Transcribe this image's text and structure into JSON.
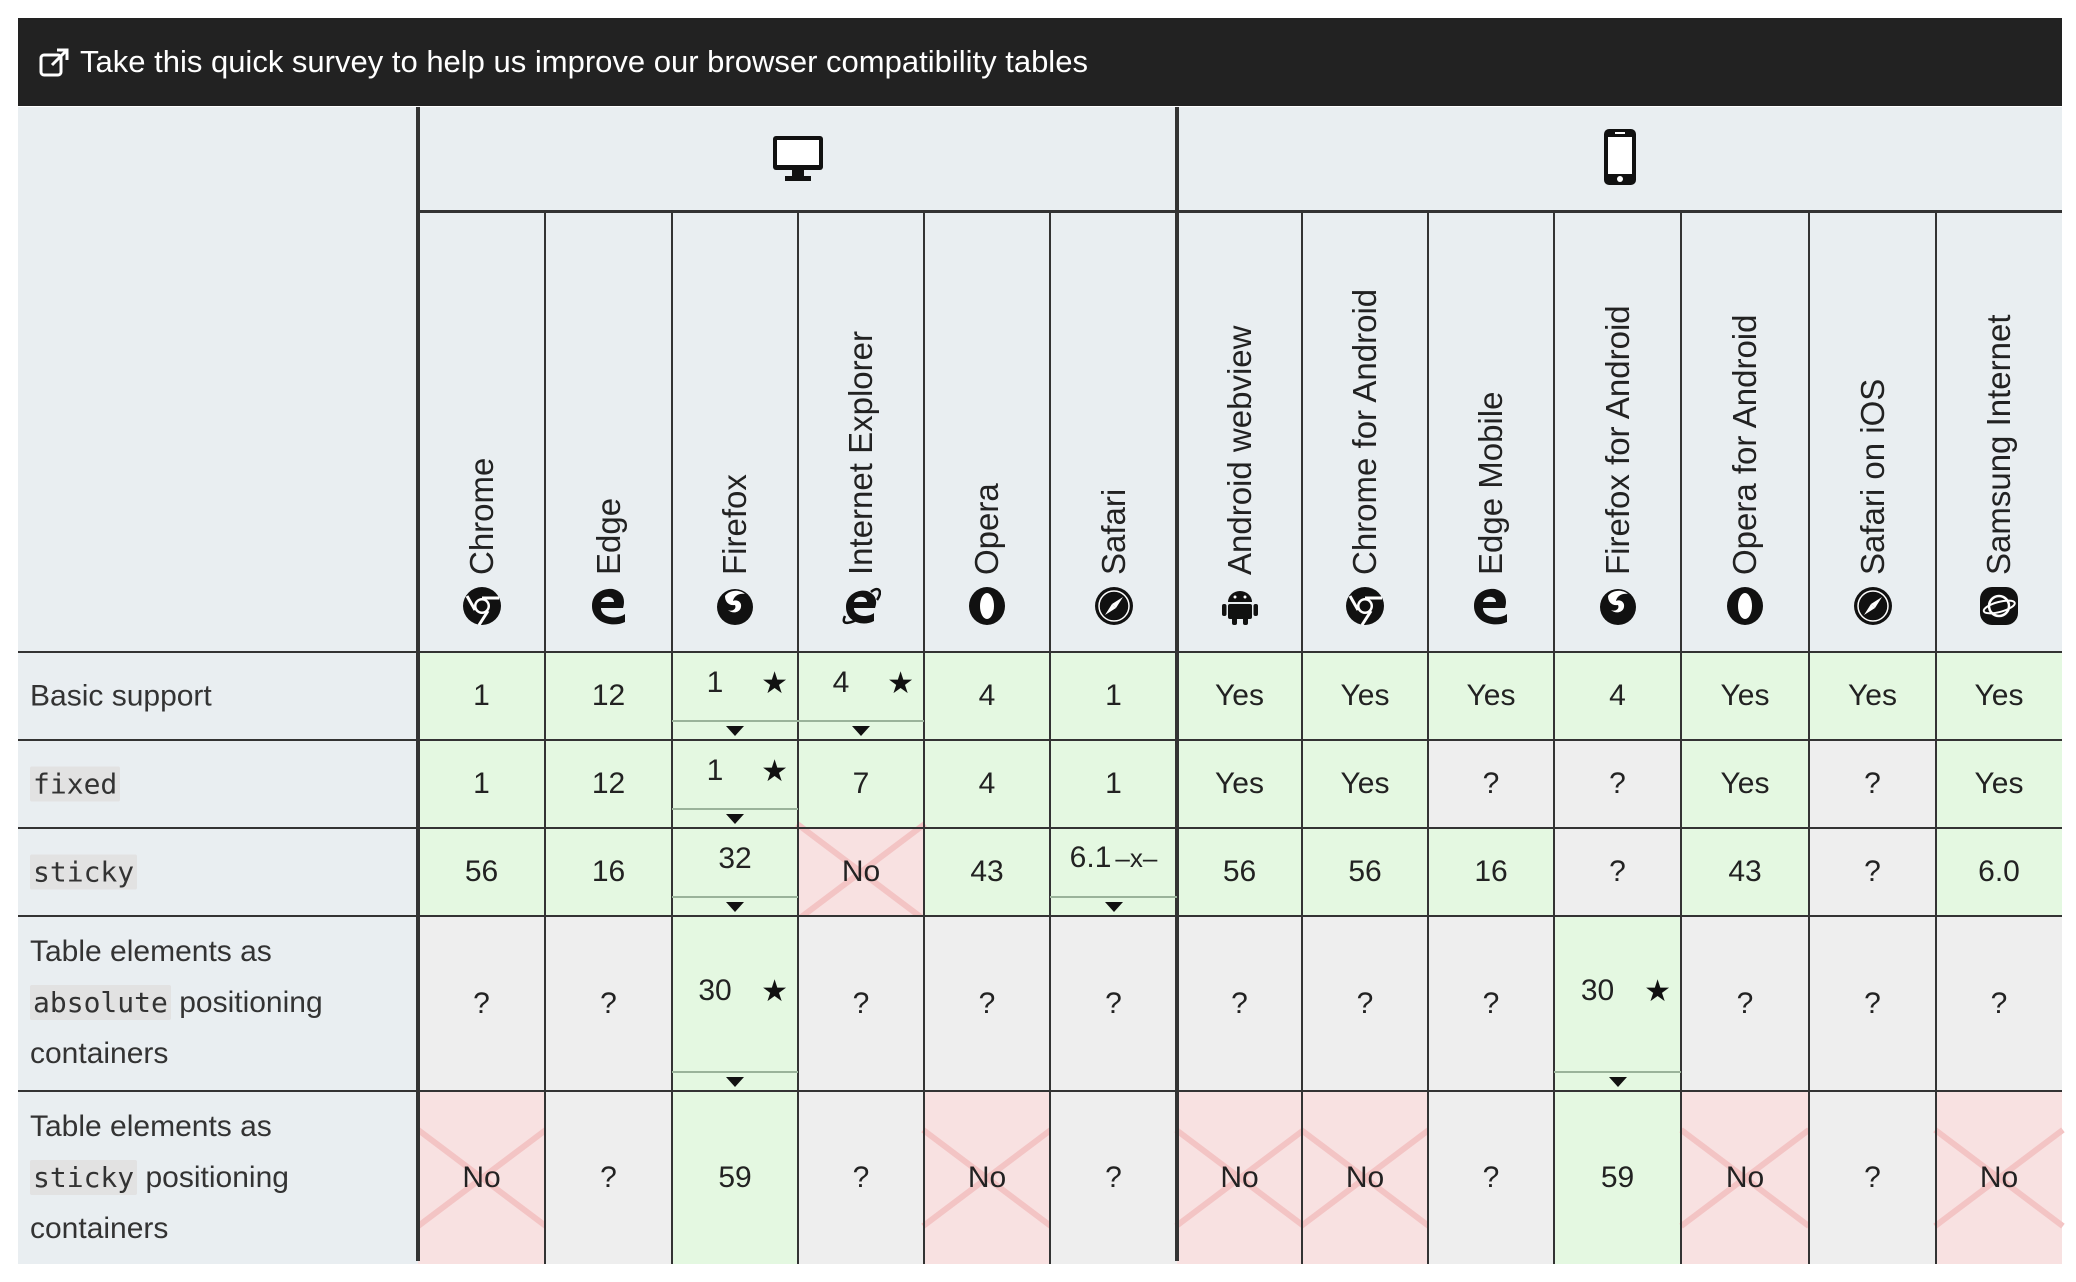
{
  "banner": {
    "icon": "external-link-icon",
    "text": "Take this quick survey to help us improve our browser compatibility tables"
  },
  "platforms": [
    {
      "name": "desktop",
      "icon": "desktop-monitor-icon"
    },
    {
      "name": "mobile",
      "icon": "mobile-phone-icon"
    }
  ],
  "browsers": [
    {
      "name": "Chrome",
      "icon": "chrome-icon"
    },
    {
      "name": "Edge",
      "icon": "edge-icon"
    },
    {
      "name": "Firefox",
      "icon": "firefox-icon"
    },
    {
      "name": "Internet Explorer",
      "icon": "internet-explorer-icon"
    },
    {
      "name": "Opera",
      "icon": "opera-icon"
    },
    {
      "name": "Safari",
      "icon": "safari-icon"
    },
    {
      "name": "Android webview",
      "icon": "android-icon"
    },
    {
      "name": "Chrome for Android",
      "icon": "chrome-icon"
    },
    {
      "name": "Edge Mobile",
      "icon": "edge-icon"
    },
    {
      "name": "Firefox for Android",
      "icon": "firefox-icon"
    },
    {
      "name": "Opera for Android",
      "icon": "opera-icon"
    },
    {
      "name": "Safari on iOS",
      "icon": "safari-icon"
    },
    {
      "name": "Samsung Internet",
      "icon": "samsung-internet-icon"
    }
  ],
  "features": [
    {
      "label": [
        "Basic support"
      ],
      "code": "",
      "rest": ""
    },
    {
      "label": [],
      "code": "fixed",
      "rest": ""
    },
    {
      "label": [],
      "code": "sticky",
      "rest": ""
    },
    {
      "label": [
        "Table elements as"
      ],
      "code": "absolute",
      "rest": "positioning",
      "tail": "containers"
    },
    {
      "label": [
        "Table elements as"
      ],
      "code": "sticky",
      "rest": "positioning",
      "tail": "containers"
    }
  ],
  "cells": [
    [
      {
        "v": "1",
        "s": "yes"
      },
      {
        "v": "12",
        "s": "yes"
      },
      {
        "v": "1",
        "s": "yes",
        "note": true,
        "drop": true
      },
      {
        "v": "4",
        "s": "yes",
        "note": true,
        "drop": true
      },
      {
        "v": "4",
        "s": "yes"
      },
      {
        "v": "1",
        "s": "yes"
      },
      {
        "v": "Yes",
        "s": "yes"
      },
      {
        "v": "Yes",
        "s": "yes"
      },
      {
        "v": "Yes",
        "s": "yes"
      },
      {
        "v": "4",
        "s": "yes"
      },
      {
        "v": "Yes",
        "s": "yes"
      },
      {
        "v": "Yes",
        "s": "yes"
      },
      {
        "v": "Yes",
        "s": "yes"
      }
    ],
    [
      {
        "v": "1",
        "s": "yes"
      },
      {
        "v": "12",
        "s": "yes"
      },
      {
        "v": "1",
        "s": "yes",
        "note": true,
        "drop": true
      },
      {
        "v": "7",
        "s": "yes"
      },
      {
        "v": "4",
        "s": "yes"
      },
      {
        "v": "1",
        "s": "yes"
      },
      {
        "v": "Yes",
        "s": "yes"
      },
      {
        "v": "Yes",
        "s": "yes"
      },
      {
        "v": "?",
        "s": "unk"
      },
      {
        "v": "?",
        "s": "unk"
      },
      {
        "v": "Yes",
        "s": "yes"
      },
      {
        "v": "?",
        "s": "unk"
      },
      {
        "v": "Yes",
        "s": "yes"
      }
    ],
    [
      {
        "v": "56",
        "s": "yes"
      },
      {
        "v": "16",
        "s": "yes"
      },
      {
        "v": "32",
        "s": "yes",
        "drop": true
      },
      {
        "v": "No",
        "s": "no"
      },
      {
        "v": "43",
        "s": "yes"
      },
      {
        "v": "6.1",
        "s": "yes",
        "prefix": "–x–",
        "drop": true
      },
      {
        "v": "56",
        "s": "yes"
      },
      {
        "v": "56",
        "s": "yes"
      },
      {
        "v": "16",
        "s": "yes"
      },
      {
        "v": "?",
        "s": "unk"
      },
      {
        "v": "43",
        "s": "yes"
      },
      {
        "v": "?",
        "s": "unk"
      },
      {
        "v": "6.0",
        "s": "yes"
      }
    ],
    [
      {
        "v": "?",
        "s": "unk"
      },
      {
        "v": "?",
        "s": "unk"
      },
      {
        "v": "30",
        "s": "yes",
        "note": true,
        "drop": true
      },
      {
        "v": "?",
        "s": "unk"
      },
      {
        "v": "?",
        "s": "unk"
      },
      {
        "v": "?",
        "s": "unk"
      },
      {
        "v": "?",
        "s": "unk"
      },
      {
        "v": "?",
        "s": "unk"
      },
      {
        "v": "?",
        "s": "unk"
      },
      {
        "v": "30",
        "s": "yes",
        "note": true,
        "drop": true
      },
      {
        "v": "?",
        "s": "unk"
      },
      {
        "v": "?",
        "s": "unk"
      },
      {
        "v": "?",
        "s": "unk"
      }
    ],
    [
      {
        "v": "No",
        "s": "no"
      },
      {
        "v": "?",
        "s": "unk"
      },
      {
        "v": "59",
        "s": "yes"
      },
      {
        "v": "?",
        "s": "unk"
      },
      {
        "v": "No",
        "s": "no"
      },
      {
        "v": "?",
        "s": "unk"
      },
      {
        "v": "No",
        "s": "no"
      },
      {
        "v": "No",
        "s": "no"
      },
      {
        "v": "?",
        "s": "unk"
      },
      {
        "v": "59",
        "s": "yes"
      },
      {
        "v": "No",
        "s": "no"
      },
      {
        "v": "?",
        "s": "unk"
      },
      {
        "v": "No",
        "s": "no"
      }
    ]
  ],
  "note_symbol": "★"
}
